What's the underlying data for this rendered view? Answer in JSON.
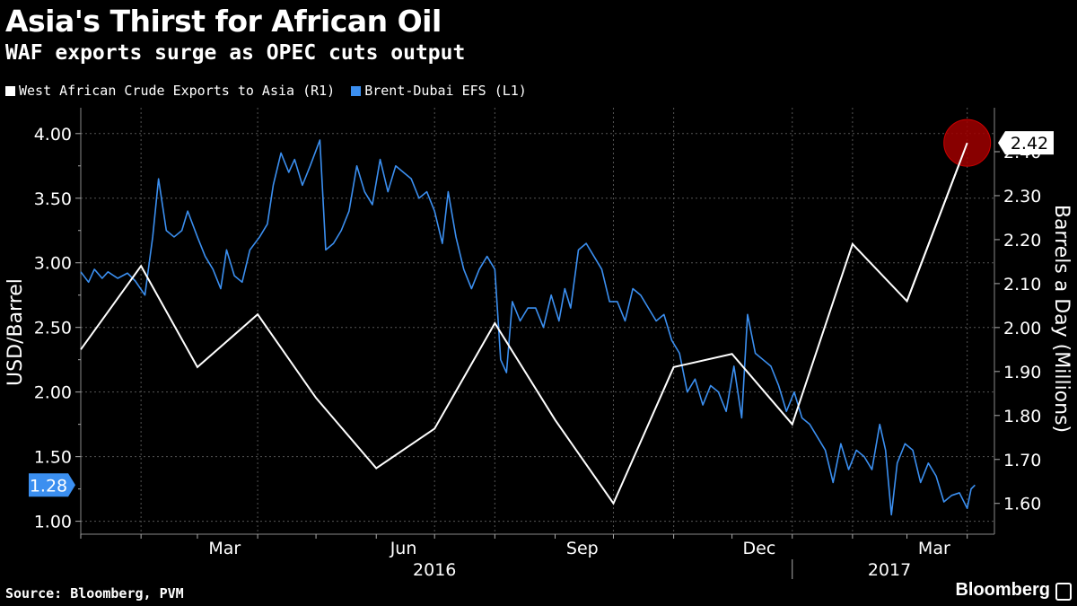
{
  "header": {
    "title": "Asia's Thirst for African Oil",
    "subtitle": "WAF exports surge as OPEC cuts output"
  },
  "footer": {
    "source": "Source: Bloomberg, PVM",
    "brand": "Bloomberg"
  },
  "colors": {
    "white_series": "#ffffff",
    "blue_series": "#3b8ff0",
    "marker": "#a00000"
  },
  "chart_data": {
    "type": "line",
    "legend_position": "top-left",
    "grid": true,
    "ylabel_left": "USD/Barrel",
    "ylabel_right": "Barrels a Day (Millions)",
    "ylim_left": [
      0.9,
      4.2
    ],
    "ylim_right": [
      1.53,
      2.5
    ],
    "y_ticks_left": [
      "1.00",
      "1.50",
      "2.00",
      "2.50",
      "3.00",
      "3.50",
      "4.00"
    ],
    "y_ticks_right": [
      "1.60",
      "1.70",
      "1.80",
      "1.90",
      "2.00",
      "2.10",
      "2.20",
      "2.30",
      "2.40"
    ],
    "month_labels": [
      "Mar",
      "Jun",
      "Sep",
      "Dec",
      "Mar"
    ],
    "year_labels": [
      "2016",
      "2017"
    ],
    "x_range": [
      "2016-01-01",
      "2017-04-15"
    ],
    "series": [
      {
        "name": "West African Crude Exports to Asia (R1)",
        "axis": "right",
        "last_value_label": "2.42",
        "points": [
          [
            "2016-01-01",
            1.95
          ],
          [
            "2016-02-01",
            2.14
          ],
          [
            "2016-03-01",
            1.91
          ],
          [
            "2016-04-01",
            2.03
          ],
          [
            "2016-05-01",
            1.84
          ],
          [
            "2016-06-01",
            1.68
          ],
          [
            "2016-07-01",
            1.77
          ],
          [
            "2016-08-01",
            2.01
          ],
          [
            "2016-09-01",
            1.79
          ],
          [
            "2016-10-01",
            1.6
          ],
          [
            "2016-11-01",
            1.91
          ],
          [
            "2016-12-01",
            1.94
          ],
          [
            "2017-01-01",
            1.78
          ],
          [
            "2017-02-01",
            2.19
          ],
          [
            "2017-03-01",
            2.06
          ],
          [
            "2017-04-01",
            2.42
          ]
        ]
      },
      {
        "name": "Brent-Dubai EFS (L1)",
        "axis": "left",
        "last_value_label": "1.28",
        "points": [
          [
            "2016-01-01",
            2.93
          ],
          [
            "2016-01-05",
            2.85
          ],
          [
            "2016-01-08",
            2.95
          ],
          [
            "2016-01-12",
            2.88
          ],
          [
            "2016-01-15",
            2.93
          ],
          [
            "2016-01-20",
            2.88
          ],
          [
            "2016-01-25",
            2.92
          ],
          [
            "2016-01-29",
            2.86
          ],
          [
            "2016-02-03",
            2.75
          ],
          [
            "2016-02-07",
            3.2
          ],
          [
            "2016-02-10",
            3.65
          ],
          [
            "2016-02-14",
            3.25
          ],
          [
            "2016-02-18",
            3.2
          ],
          [
            "2016-02-22",
            3.25
          ],
          [
            "2016-02-25",
            3.4
          ],
          [
            "2016-03-01",
            3.2
          ],
          [
            "2016-03-05",
            3.05
          ],
          [
            "2016-03-09",
            2.95
          ],
          [
            "2016-03-13",
            2.8
          ],
          [
            "2016-03-16",
            3.1
          ],
          [
            "2016-03-20",
            2.9
          ],
          [
            "2016-03-24",
            2.85
          ],
          [
            "2016-03-28",
            3.1
          ],
          [
            "2016-04-02",
            3.2
          ],
          [
            "2016-04-06",
            3.3
          ],
          [
            "2016-04-09",
            3.6
          ],
          [
            "2016-04-13",
            3.85
          ],
          [
            "2016-04-17",
            3.7
          ],
          [
            "2016-04-20",
            3.8
          ],
          [
            "2016-04-24",
            3.6
          ],
          [
            "2016-04-28",
            3.75
          ],
          [
            "2016-05-03",
            3.95
          ],
          [
            "2016-05-06",
            3.1
          ],
          [
            "2016-05-10",
            3.15
          ],
          [
            "2016-05-14",
            3.25
          ],
          [
            "2016-05-18",
            3.4
          ],
          [
            "2016-05-22",
            3.75
          ],
          [
            "2016-05-26",
            3.55
          ],
          [
            "2016-05-30",
            3.45
          ],
          [
            "2016-06-03",
            3.8
          ],
          [
            "2016-06-07",
            3.55
          ],
          [
            "2016-06-11",
            3.75
          ],
          [
            "2016-06-15",
            3.7
          ],
          [
            "2016-06-19",
            3.65
          ],
          [
            "2016-06-23",
            3.5
          ],
          [
            "2016-06-27",
            3.55
          ],
          [
            "2016-07-01",
            3.4
          ],
          [
            "2016-07-05",
            3.15
          ],
          [
            "2016-07-08",
            3.55
          ],
          [
            "2016-07-12",
            3.2
          ],
          [
            "2016-07-16",
            2.95
          ],
          [
            "2016-07-20",
            2.8
          ],
          [
            "2016-07-24",
            2.95
          ],
          [
            "2016-07-28",
            3.05
          ],
          [
            "2016-08-01",
            2.95
          ],
          [
            "2016-08-04",
            2.25
          ],
          [
            "2016-08-07",
            2.15
          ],
          [
            "2016-08-10",
            2.7
          ],
          [
            "2016-08-14",
            2.55
          ],
          [
            "2016-08-18",
            2.65
          ],
          [
            "2016-08-22",
            2.65
          ],
          [
            "2016-08-26",
            2.5
          ],
          [
            "2016-08-30",
            2.75
          ],
          [
            "2016-09-03",
            2.55
          ],
          [
            "2016-09-06",
            2.8
          ],
          [
            "2016-09-09",
            2.65
          ],
          [
            "2016-09-13",
            3.1
          ],
          [
            "2016-09-17",
            3.15
          ],
          [
            "2016-09-21",
            3.05
          ],
          [
            "2016-09-25",
            2.95
          ],
          [
            "2016-09-29",
            2.7
          ],
          [
            "2016-10-03",
            2.7
          ],
          [
            "2016-10-07",
            2.55
          ],
          [
            "2016-10-11",
            2.8
          ],
          [
            "2016-10-15",
            2.75
          ],
          [
            "2016-10-19",
            2.65
          ],
          [
            "2016-10-23",
            2.55
          ],
          [
            "2016-10-27",
            2.6
          ],
          [
            "2016-10-31",
            2.4
          ],
          [
            "2016-11-04",
            2.3
          ],
          [
            "2016-11-08",
            2.0
          ],
          [
            "2016-11-12",
            2.1
          ],
          [
            "2016-11-16",
            1.9
          ],
          [
            "2016-11-20",
            2.05
          ],
          [
            "2016-11-24",
            2.0
          ],
          [
            "2016-11-28",
            1.85
          ],
          [
            "2016-12-02",
            2.2
          ],
          [
            "2016-12-06",
            1.8
          ],
          [
            "2016-12-09",
            2.6
          ],
          [
            "2016-12-13",
            2.3
          ],
          [
            "2016-12-17",
            2.25
          ],
          [
            "2016-12-21",
            2.2
          ],
          [
            "2016-12-25",
            2.05
          ],
          [
            "2016-12-29",
            1.85
          ],
          [
            "2017-01-02",
            2.0
          ],
          [
            "2017-01-06",
            1.8
          ],
          [
            "2017-01-10",
            1.75
          ],
          [
            "2017-01-14",
            1.65
          ],
          [
            "2017-01-18",
            1.55
          ],
          [
            "2017-01-22",
            1.3
          ],
          [
            "2017-01-26",
            1.6
          ],
          [
            "2017-01-30",
            1.4
          ],
          [
            "2017-02-03",
            1.55
          ],
          [
            "2017-02-07",
            1.5
          ],
          [
            "2017-02-11",
            1.4
          ],
          [
            "2017-02-15",
            1.75
          ],
          [
            "2017-02-18",
            1.55
          ],
          [
            "2017-02-21",
            1.05
          ],
          [
            "2017-02-24",
            1.45
          ],
          [
            "2017-02-28",
            1.6
          ],
          [
            "2017-03-04",
            1.55
          ],
          [
            "2017-03-08",
            1.3
          ],
          [
            "2017-03-12",
            1.45
          ],
          [
            "2017-03-16",
            1.35
          ],
          [
            "2017-03-20",
            1.15
          ],
          [
            "2017-03-24",
            1.2
          ],
          [
            "2017-03-28",
            1.22
          ],
          [
            "2017-04-01",
            1.1
          ],
          [
            "2017-04-03",
            1.25
          ],
          [
            "2017-04-05",
            1.28
          ]
        ]
      }
    ]
  }
}
